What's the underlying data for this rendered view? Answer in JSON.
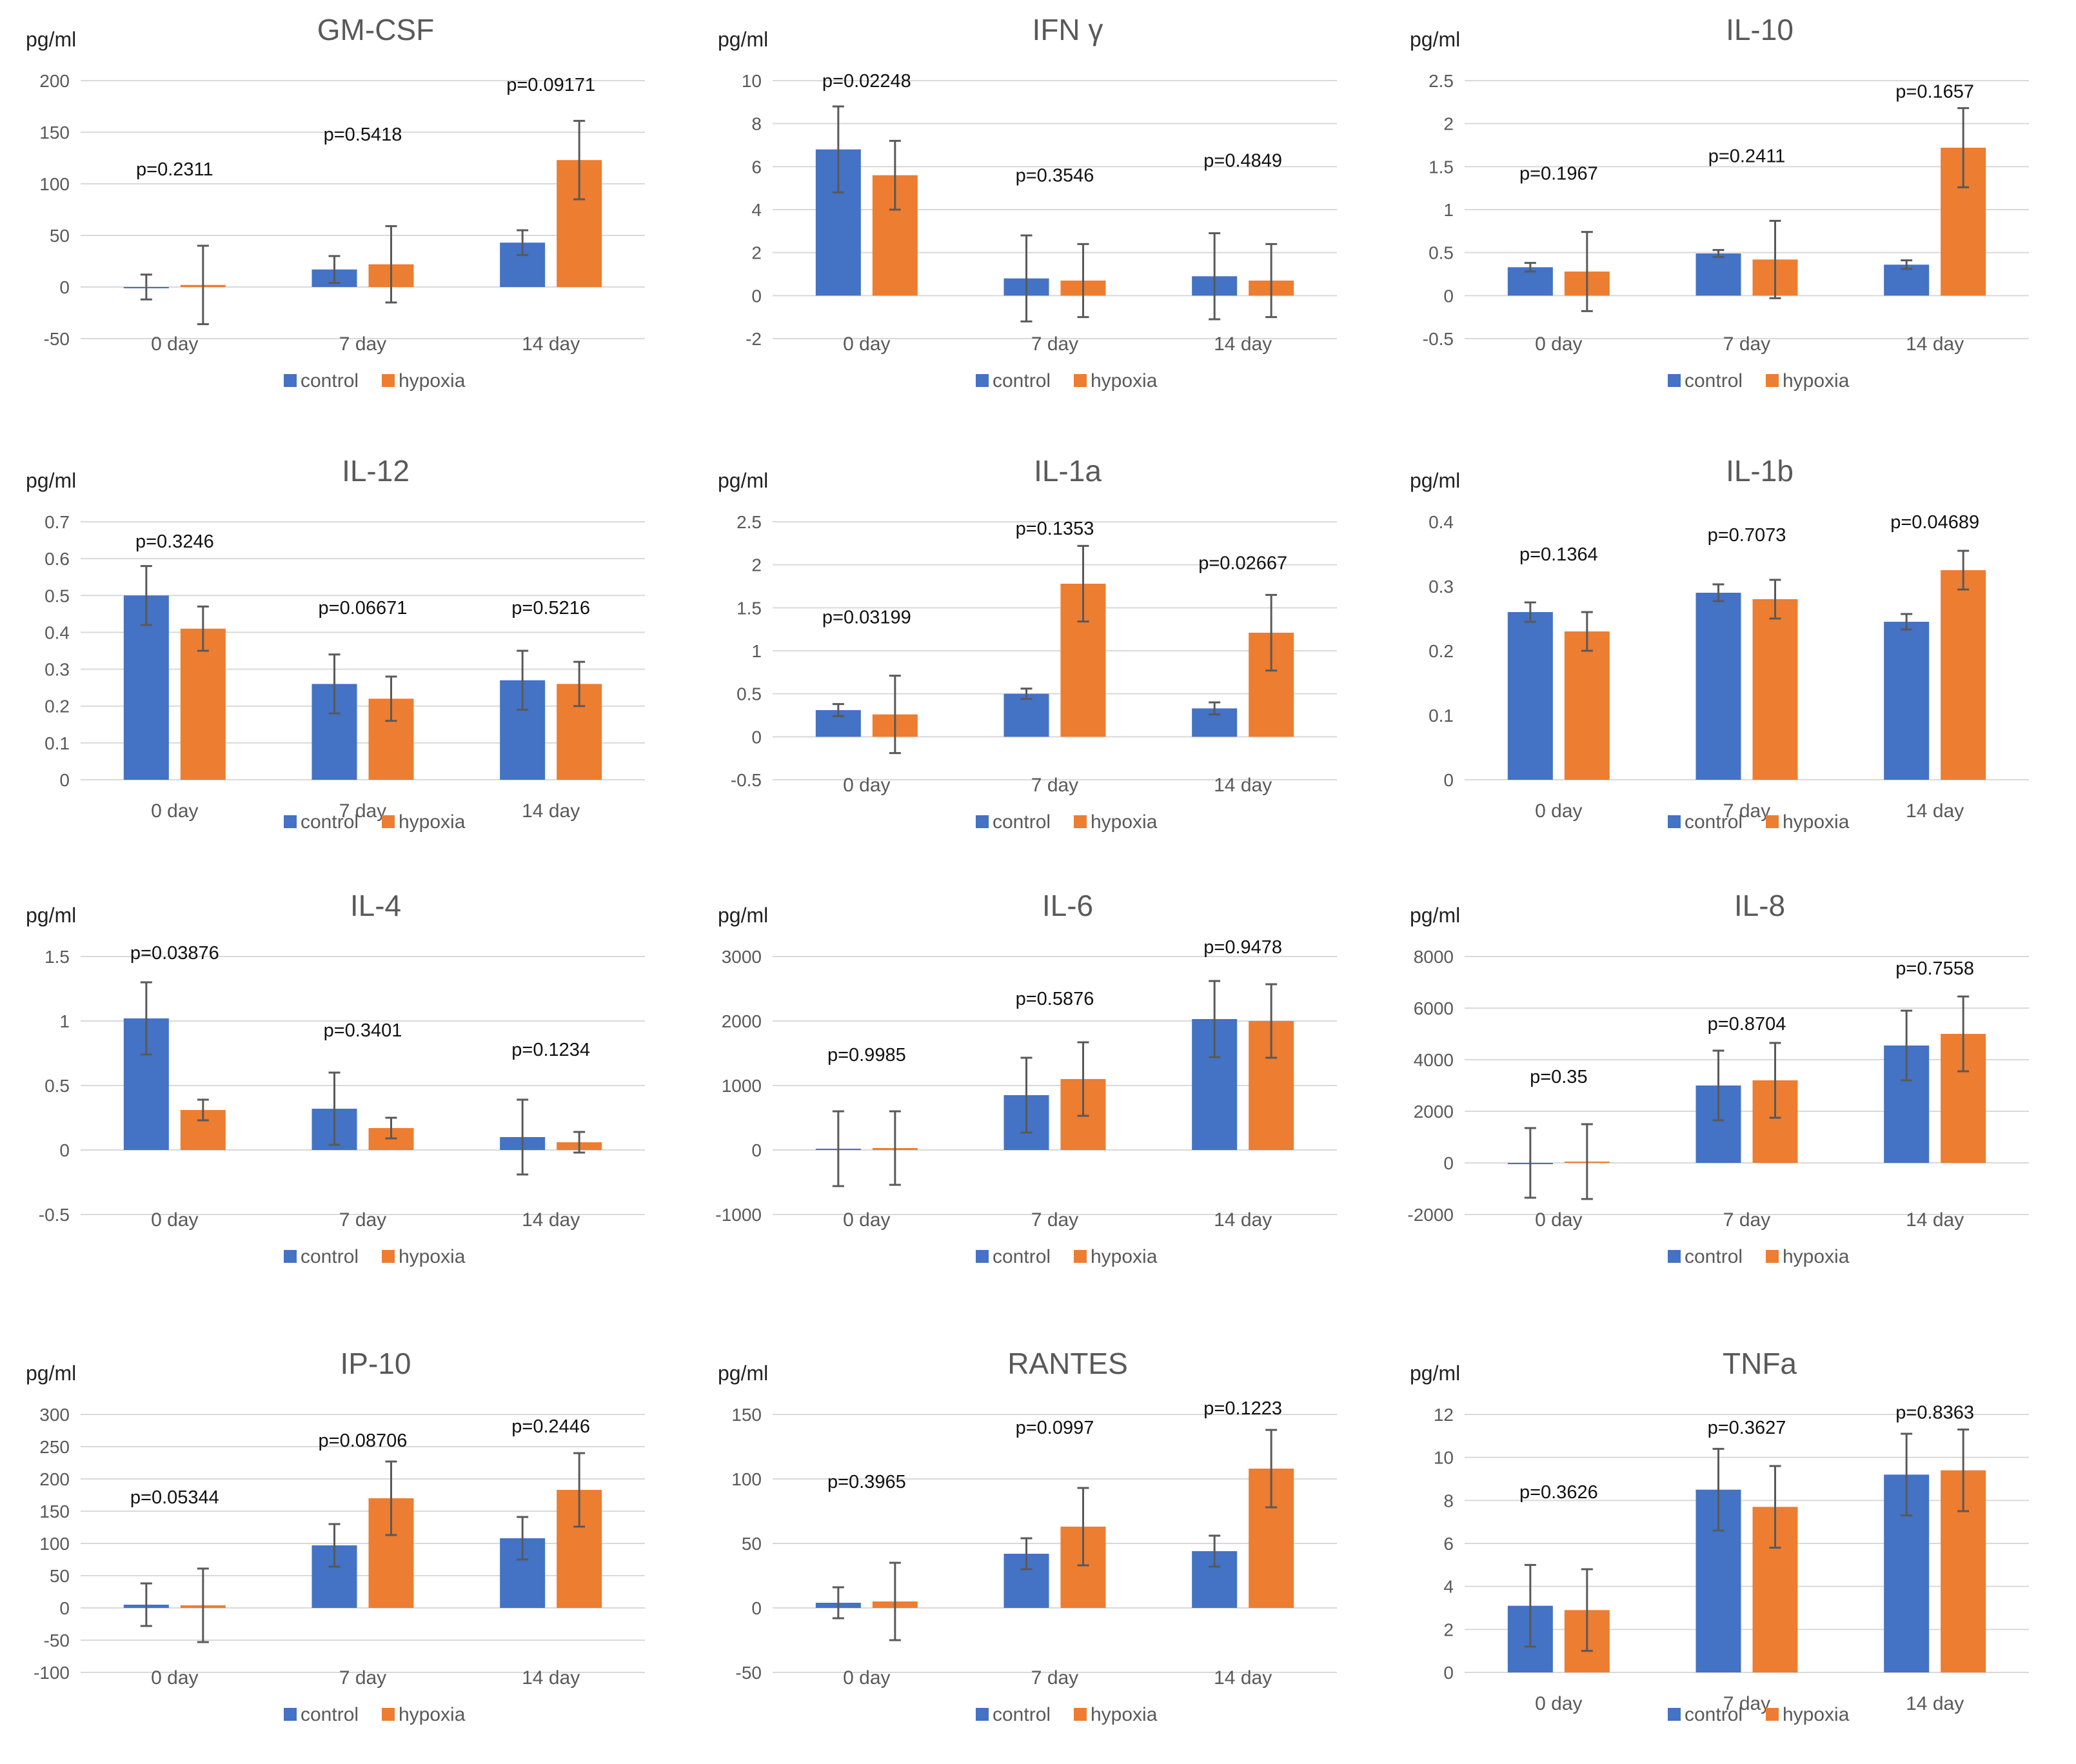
{
  "colors": {
    "control": "#4472C4",
    "hypoxia": "#ED7D31"
  },
  "legend": {
    "control": "control",
    "hypoxia": "hypoxia"
  },
  "chart_data": [
    {
      "type": "bar",
      "title": "GM-CSF",
      "ylabel": "pg/ml",
      "ylim": [
        -50,
        200
      ],
      "ticks": [
        -50,
        0,
        50,
        100,
        150,
        200
      ],
      "tick_labels": [
        "-50",
        "0",
        "50",
        "100",
        "150",
        "200"
      ],
      "grid": true,
      "legend": "bottom",
      "categories": [
        "0 day",
        "7 day",
        "14 day"
      ],
      "series": [
        {
          "name": "control",
          "values": [
            0,
            17,
            43
          ],
          "errors": [
            12,
            13,
            12
          ]
        },
        {
          "name": "hypoxia",
          "values": [
            2,
            22,
            123
          ],
          "errors": [
            38,
            37,
            38
          ]
        }
      ],
      "pvalues": [
        "p=0.2311",
        "p=0.5418",
        "p=0.09171"
      ],
      "pvalue_y": [
        108,
        142,
        190
      ]
    },
    {
      "type": "bar",
      "title": "IFN γ",
      "ylabel": "pg/ml",
      "ylim": [
        -2,
        10
      ],
      "ticks": [
        -2,
        0,
        2,
        4,
        6,
        8,
        10
      ],
      "tick_labels": [
        "-2",
        "0",
        "2",
        "4",
        "6",
        "8",
        "10"
      ],
      "grid": true,
      "legend": "bottom",
      "categories": [
        "0 day",
        "7 day",
        "14 day"
      ],
      "series": [
        {
          "name": "control",
          "values": [
            6.8,
            0.8,
            0.9
          ],
          "errors": [
            2,
            2,
            2
          ]
        },
        {
          "name": "hypoxia",
          "values": [
            5.6,
            0.7,
            0.7
          ],
          "errors": [
            1.6,
            1.7,
            1.7
          ]
        }
      ],
      "pvalues": [
        "p=0.02248",
        "p=0.3546",
        "p=0.4849"
      ],
      "pvalue_y": [
        9.7,
        5.3,
        6.0
      ]
    },
    {
      "type": "bar",
      "title": "IL-10",
      "ylabel": "pg/ml",
      "ylim": [
        -0.5,
        2.5
      ],
      "ticks": [
        -0.5,
        0,
        0.5,
        1,
        1.5,
        2,
        2.5
      ],
      "tick_labels": [
        "-0.5",
        "0",
        "0.5",
        "1",
        "1.5",
        "2",
        "2.5"
      ],
      "grid": true,
      "legend": "bottom",
      "categories": [
        "0 day",
        "7 day",
        "14 day"
      ],
      "series": [
        {
          "name": "control",
          "values": [
            0.33,
            0.49,
            0.36
          ],
          "errors": [
            0.05,
            0.04,
            0.05
          ]
        },
        {
          "name": "hypoxia",
          "values": [
            0.28,
            0.42,
            1.72
          ],
          "errors": [
            0.46,
            0.45,
            0.46
          ]
        }
      ],
      "pvalues": [
        "p=0.1967",
        "p=0.2411",
        "p=0.1657"
      ],
      "pvalue_y": [
        1.35,
        1.55,
        2.3
      ]
    },
    {
      "type": "bar",
      "title": "IL-12",
      "ylabel": "pg/ml",
      "ylim": [
        0,
        0.7
      ],
      "ticks": [
        0,
        0.1,
        0.2,
        0.3,
        0.4,
        0.5,
        0.6,
        0.7
      ],
      "tick_labels": [
        "0",
        "0.1",
        "0.2",
        "0.3",
        "0.4",
        "0.5",
        "0.6",
        "0.7"
      ],
      "grid": true,
      "legend": "bottom",
      "categories": [
        "0 day",
        "7 day",
        "14 day"
      ],
      "series": [
        {
          "name": "control",
          "values": [
            0.5,
            0.26,
            0.27
          ],
          "errors": [
            0.08,
            0.08,
            0.08
          ]
        },
        {
          "name": "hypoxia",
          "values": [
            0.41,
            0.22,
            0.26
          ],
          "errors": [
            0.06,
            0.06,
            0.06
          ]
        }
      ],
      "pvalues": [
        "p=0.3246",
        "p=0.06671",
        "p=0.5216"
      ],
      "pvalue_y": [
        0.63,
        0.45,
        0.45
      ]
    },
    {
      "type": "bar",
      "title": "IL-1a",
      "ylabel": "pg/ml",
      "ylim": [
        -0.5,
        2.5
      ],
      "ticks": [
        -0.5,
        0,
        0.5,
        1,
        1.5,
        2,
        2.5
      ],
      "tick_labels": [
        "-0.5",
        "0",
        "0.5",
        "1",
        "1.5",
        "2",
        "2.5"
      ],
      "grid": true,
      "legend": "bottom",
      "categories": [
        "0 day",
        "7 day",
        "14 day"
      ],
      "series": [
        {
          "name": "control",
          "values": [
            0.31,
            0.5,
            0.33
          ],
          "errors": [
            0.07,
            0.06,
            0.07
          ]
        },
        {
          "name": "hypoxia",
          "values": [
            0.26,
            1.78,
            1.21
          ],
          "errors": [
            0.45,
            0.44,
            0.44
          ]
        }
      ],
      "pvalues": [
        "p=0.03199",
        "p=0.1353",
        "p=0.02667"
      ],
      "pvalue_y": [
        1.32,
        2.35,
        1.95
      ]
    },
    {
      "type": "bar",
      "title": "IL-1b",
      "ylabel": "pg/ml",
      "ylim": [
        0,
        0.4
      ],
      "ticks": [
        0,
        0.1,
        0.2,
        0.3,
        0.4
      ],
      "tick_labels": [
        "0",
        "0.1",
        "0.2",
        "0.3",
        "0.4"
      ],
      "grid": false,
      "legend": "bottom",
      "categories": [
        "0 day",
        "7 day",
        "14 day"
      ],
      "series": [
        {
          "name": "control",
          "values": [
            0.26,
            0.29,
            0.245
          ],
          "errors": [
            0.015,
            0.013,
            0.012
          ]
        },
        {
          "name": "hypoxia",
          "values": [
            0.23,
            0.28,
            0.325
          ],
          "errors": [
            0.03,
            0.03,
            0.03
          ]
        }
      ],
      "pvalues": [
        "p=0.1364",
        "p=0.7073",
        "p=0.04689"
      ],
      "pvalue_y": [
        0.34,
        0.37,
        0.39
      ]
    },
    {
      "type": "bar",
      "title": "IL-4",
      "ylabel": "pg/ml",
      "ylim": [
        -0.5,
        1.5
      ],
      "ticks": [
        -0.5,
        0,
        0.5,
        1,
        1.5
      ],
      "tick_labels": [
        "-0.5",
        "0",
        "0.5",
        "1",
        "1.5"
      ],
      "grid": true,
      "legend": "bottom",
      "categories": [
        "0 day",
        "7 day",
        "14 day"
      ],
      "series": [
        {
          "name": "control",
          "values": [
            1.02,
            0.32,
            0.1
          ],
          "errors": [
            0.28,
            0.28,
            0.29
          ]
        },
        {
          "name": "hypoxia",
          "values": [
            0.31,
            0.17,
            0.06
          ],
          "errors": [
            0.08,
            0.08,
            0.08
          ]
        }
      ],
      "pvalues": [
        "p=0.03876",
        "p=0.3401",
        "p=0.1234"
      ],
      "pvalue_y": [
        1.48,
        0.88,
        0.73
      ]
    },
    {
      "type": "bar",
      "title": "IL-6",
      "ylabel": "pg/ml",
      "ylim": [
        -1000,
        3000
      ],
      "ticks": [
        -1000,
        0,
        1000,
        2000,
        3000
      ],
      "tick_labels": [
        "-1000",
        "0",
        "1000",
        "2000",
        "3000"
      ],
      "grid": true,
      "legend": "bottom",
      "categories": [
        "0 day",
        "7 day",
        "14 day"
      ],
      "series": [
        {
          "name": "control",
          "values": [
            20,
            850,
            2030
          ],
          "errors": [
            580,
            580,
            590
          ]
        },
        {
          "name": "hypoxia",
          "values": [
            30,
            1100,
            2000
          ],
          "errors": [
            570,
            570,
            570
          ]
        }
      ],
      "pvalues": [
        "p=0.9985",
        "p=0.5876",
        "p=0.9478"
      ],
      "pvalue_y": [
        1380,
        2250,
        3100
      ]
    },
    {
      "type": "bar",
      "title": "IL-8",
      "ylabel": "pg/ml",
      "ylim": [
        -2000,
        8000
      ],
      "ticks": [
        -2000,
        0,
        2000,
        4000,
        6000,
        8000
      ],
      "tick_labels": [
        "-2000",
        "0",
        "2000",
        "4000",
        "6000",
        "8000"
      ],
      "grid": true,
      "legend": "bottom",
      "categories": [
        "0 day",
        "7 day",
        "14 day"
      ],
      "series": [
        {
          "name": "control",
          "values": [
            0,
            3000,
            4550
          ],
          "errors": [
            1350,
            1350,
            1350
          ]
        },
        {
          "name": "hypoxia",
          "values": [
            50,
            3200,
            5000
          ],
          "errors": [
            1450,
            1450,
            1450
          ]
        }
      ],
      "pvalues": [
        "p=0.35",
        "p=0.8704",
        "p=0.7558"
      ],
      "pvalue_y": [
        3100,
        5150,
        7300
      ]
    },
    {
      "type": "bar",
      "title": "IP-10",
      "ylabel": "pg/ml",
      "ylim": [
        -100,
        300
      ],
      "ticks": [
        -100,
        -50,
        0,
        50,
        100,
        150,
        200,
        250,
        300
      ],
      "tick_labels": [
        "-100",
        "-50",
        "0",
        "50",
        "100",
        "150",
        "200",
        "250",
        "300"
      ],
      "grid": true,
      "legend": "bottom",
      "categories": [
        "0 day",
        "7 day",
        "14 day"
      ],
      "series": [
        {
          "name": "control",
          "values": [
            5,
            97,
            108
          ],
          "errors": [
            33,
            33,
            33
          ]
        },
        {
          "name": "hypoxia",
          "values": [
            4,
            170,
            183
          ],
          "errors": [
            57,
            57,
            57
          ]
        }
      ],
      "pvalues": [
        "p=0.05344",
        "p=0.08706",
        "p=0.2446"
      ],
      "pvalue_y": [
        162,
        250,
        272
      ]
    },
    {
      "type": "bar",
      "title": "RANTES",
      "ylabel": "pg/ml",
      "ylim": [
        -50,
        150
      ],
      "ticks": [
        -50,
        0,
        50,
        100,
        150
      ],
      "tick_labels": [
        "-50",
        "0",
        "50",
        "100",
        "150"
      ],
      "grid": true,
      "legend": "bottom",
      "categories": [
        "0 day",
        "7 day",
        "14 day"
      ],
      "series": [
        {
          "name": "control",
          "values": [
            4,
            42,
            44
          ],
          "errors": [
            12,
            12,
            12
          ]
        },
        {
          "name": "hypoxia",
          "values": [
            5,
            63,
            108
          ],
          "errors": [
            30,
            30,
            30
          ]
        }
      ],
      "pvalues": [
        "p=0.3965",
        "p=0.0997",
        "p=0.1223"
      ],
      "pvalue_y": [
        93,
        135,
        150
      ]
    },
    {
      "type": "bar",
      "title": "TNFa",
      "ylabel": "pg/ml",
      "ylim": [
        0,
        12
      ],
      "ticks": [
        0,
        2,
        4,
        6,
        8,
        10,
        12
      ],
      "tick_labels": [
        "0",
        "2",
        "4",
        "6",
        "8",
        "10",
        "12"
      ],
      "grid": true,
      "legend": "bottom",
      "categories": [
        "0 day",
        "7 day",
        "14 day"
      ],
      "series": [
        {
          "name": "control",
          "values": [
            3.1,
            8.5,
            9.2
          ],
          "errors": [
            1.9,
            1.9,
            1.9
          ]
        },
        {
          "name": "hypoxia",
          "values": [
            2.9,
            7.7,
            9.4
          ],
          "errors": [
            1.9,
            1.9,
            1.9
          ]
        }
      ],
      "pvalues": [
        "p=0.3626",
        "p=0.3627",
        "p=0.8363"
      ],
      "pvalue_y": [
        8.1,
        11.1,
        11.8
      ]
    }
  ]
}
